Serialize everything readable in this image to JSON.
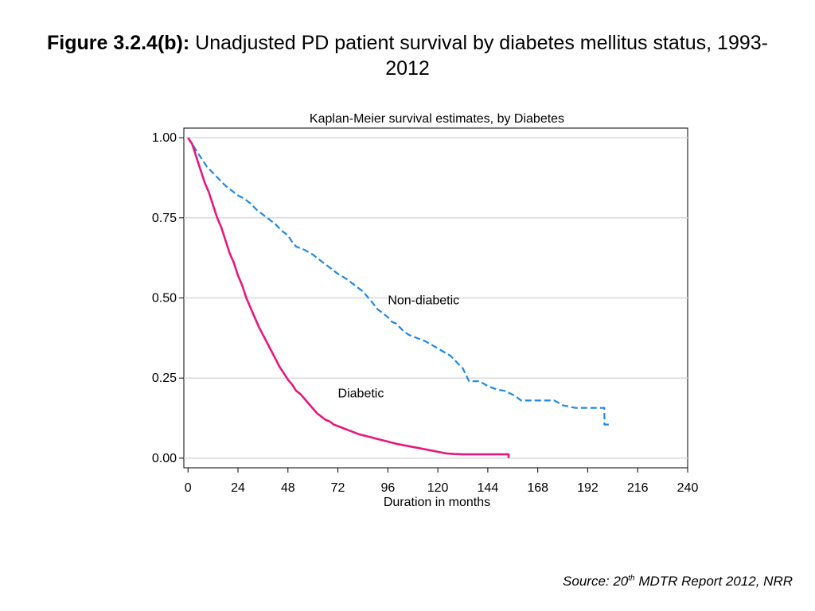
{
  "figure": {
    "label": "Figure 3.2.4(b):",
    "title": "Unadjusted PD patient survival by diabetes mellitus status, 1993-2012"
  },
  "source": {
    "prefix": "Source: 20",
    "superscript": "th",
    "suffix": " MDTR Report 2012, NRR"
  },
  "chart_data": {
    "type": "line",
    "title": "Kaplan-Meier survival estimates, by Diabetes",
    "xlabel": "Duration in months",
    "ylabel": "",
    "xlim": [
      -2,
      240
    ],
    "ylim": [
      -0.03,
      1.03
    ],
    "xticks": [
      0,
      24,
      48,
      72,
      96,
      120,
      144,
      168,
      192,
      216,
      240
    ],
    "yticks": [
      0,
      0.25,
      0.5,
      0.75,
      1.0
    ],
    "ytick_labels": [
      "0.00",
      "0.25",
      "0.50",
      "0.75",
      "1.00"
    ],
    "grid": true,
    "legend": "none",
    "series": [
      {
        "name": "Non-diabetic",
        "color": "#1e88e5",
        "style": "dashed",
        "label_anchor": [
          96,
          0.48
        ],
        "points": [
          [
            0,
            1.0
          ],
          [
            3,
            0.97
          ],
          [
            6,
            0.94
          ],
          [
            9,
            0.91
          ],
          [
            12,
            0.89
          ],
          [
            15,
            0.87
          ],
          [
            18,
            0.85
          ],
          [
            21,
            0.835
          ],
          [
            24,
            0.82
          ],
          [
            27,
            0.81
          ],
          [
            30,
            0.795
          ],
          [
            33,
            0.775
          ],
          [
            36,
            0.76
          ],
          [
            39,
            0.745
          ],
          [
            42,
            0.73
          ],
          [
            45,
            0.71
          ],
          [
            48,
            0.695
          ],
          [
            50,
            0.675
          ],
          [
            52,
            0.66
          ],
          [
            56,
            0.65
          ],
          [
            60,
            0.635
          ],
          [
            64,
            0.615
          ],
          [
            68,
            0.595
          ],
          [
            72,
            0.575
          ],
          [
            76,
            0.56
          ],
          [
            80,
            0.54
          ],
          [
            84,
            0.52
          ],
          [
            88,
            0.49
          ],
          [
            91,
            0.465
          ],
          [
            94,
            0.45
          ],
          [
            96,
            0.44
          ],
          [
            98,
            0.425
          ],
          [
            100,
            0.42
          ],
          [
            103,
            0.4
          ],
          [
            106,
            0.385
          ],
          [
            110,
            0.375
          ],
          [
            114,
            0.365
          ],
          [
            118,
            0.35
          ],
          [
            122,
            0.335
          ],
          [
            126,
            0.32
          ],
          [
            129,
            0.3
          ],
          [
            132,
            0.28
          ],
          [
            135,
            0.24
          ],
          [
            140,
            0.24
          ],
          [
            144,
            0.225
          ],
          [
            148,
            0.215
          ],
          [
            152,
            0.21
          ],
          [
            157,
            0.195
          ],
          [
            160,
            0.18
          ],
          [
            166,
            0.18
          ],
          [
            170,
            0.18
          ],
          [
            176,
            0.18
          ],
          [
            180,
            0.165
          ],
          [
            186,
            0.157
          ],
          [
            192,
            0.157
          ],
          [
            200,
            0.157
          ],
          [
            200,
            0.105
          ],
          [
            203,
            0.105
          ]
        ]
      },
      {
        "name": "Diabetic",
        "color": "#e8177d",
        "style": "solid",
        "label_anchor": [
          72,
          0.19
        ],
        "points": [
          [
            0,
            1.0
          ],
          [
            2,
            0.98
          ],
          [
            4,
            0.94
          ],
          [
            6,
            0.9
          ],
          [
            8,
            0.86
          ],
          [
            10,
            0.83
          ],
          [
            12,
            0.79
          ],
          [
            14,
            0.75
          ],
          [
            16,
            0.72
          ],
          [
            18,
            0.68
          ],
          [
            20,
            0.64
          ],
          [
            22,
            0.61
          ],
          [
            24,
            0.57
          ],
          [
            26,
            0.54
          ],
          [
            28,
            0.5
          ],
          [
            30,
            0.47
          ],
          [
            32,
            0.44
          ],
          [
            34,
            0.41
          ],
          [
            36,
            0.385
          ],
          [
            38,
            0.36
          ],
          [
            40,
            0.335
          ],
          [
            42,
            0.31
          ],
          [
            44,
            0.285
          ],
          [
            46,
            0.265
          ],
          [
            48,
            0.245
          ],
          [
            50,
            0.23
          ],
          [
            52,
            0.21
          ],
          [
            54,
            0.2
          ],
          [
            56,
            0.185
          ],
          [
            58,
            0.17
          ],
          [
            60,
            0.155
          ],
          [
            62,
            0.14
          ],
          [
            64,
            0.13
          ],
          [
            66,
            0.12
          ],
          [
            68,
            0.115
          ],
          [
            70,
            0.105
          ],
          [
            72,
            0.1
          ],
          [
            74,
            0.095
          ],
          [
            76,
            0.09
          ],
          [
            78,
            0.085
          ],
          [
            80,
            0.08
          ],
          [
            82,
            0.075
          ],
          [
            85,
            0.07
          ],
          [
            88,
            0.065
          ],
          [
            91,
            0.06
          ],
          [
            94,
            0.055
          ],
          [
            97,
            0.05
          ],
          [
            100,
            0.045
          ],
          [
            104,
            0.04
          ],
          [
            108,
            0.035
          ],
          [
            112,
            0.03
          ],
          [
            116,
            0.025
          ],
          [
            120,
            0.02
          ],
          [
            124,
            0.015
          ],
          [
            128,
            0.013
          ],
          [
            132,
            0.012
          ],
          [
            140,
            0.012
          ],
          [
            148,
            0.012
          ],
          [
            154,
            0.012
          ],
          [
            154,
            0.0
          ]
        ]
      }
    ]
  }
}
